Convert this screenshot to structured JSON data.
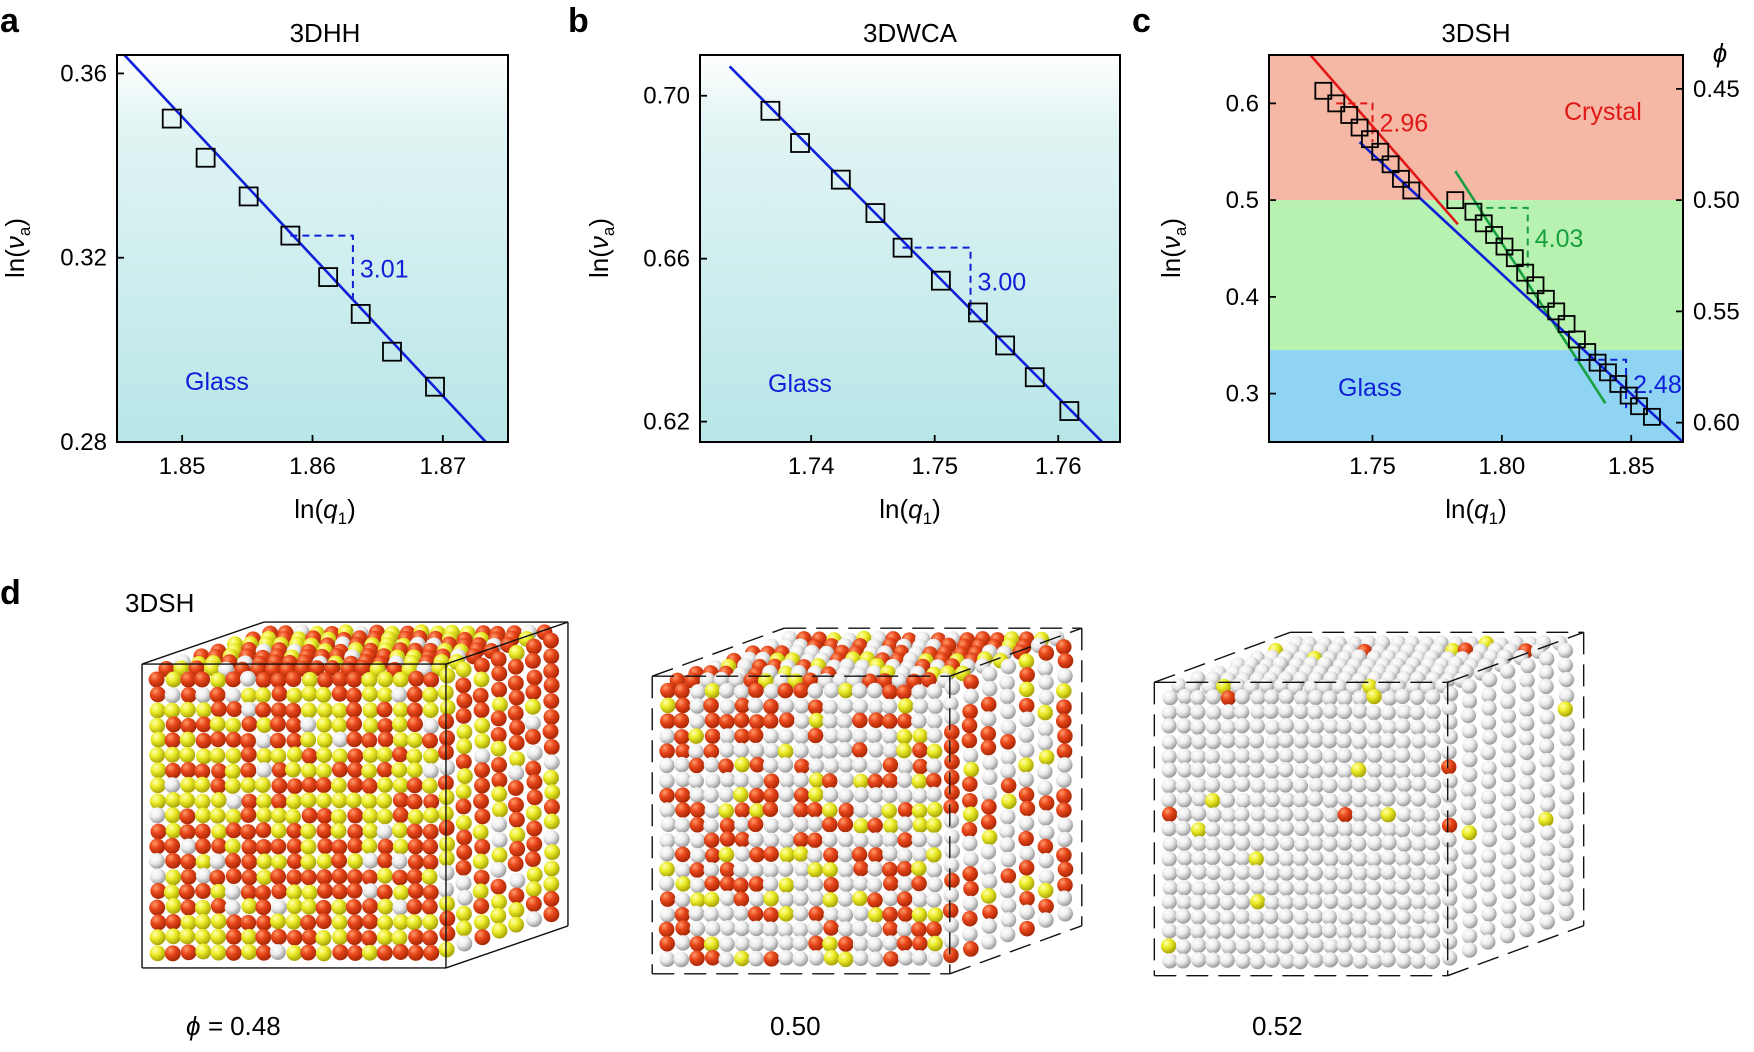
{
  "panel_labels": {
    "a": "a",
    "b": "b",
    "c": "c",
    "d": "d"
  },
  "colors": {
    "line_blue": "#1020d8",
    "glass_top": "#ffffff",
    "glass_bottom": "#b8e6e8",
    "crystal_band": "#f5b8a4",
    "mid_band": "#b8f2b0",
    "glass_band": "#8fd4f2",
    "red": "#e01818",
    "green": "#18a040",
    "orange_particle": "#e8461a",
    "yellow_particle": "#ecec28",
    "white_particle": "#f2f2f2"
  },
  "chart_data": [
    {
      "id": "a",
      "type": "scatter",
      "title": "3DHH",
      "xlabel": "ln(q1)",
      "ylabel": "ln(va)",
      "xlim": [
        1.845,
        1.875
      ],
      "ylim": [
        0.28,
        0.364
      ],
      "xticks": [
        1.85,
        1.86,
        1.87
      ],
      "xtick_labels": [
        "1.85",
        "1.86",
        "1.87"
      ],
      "yticks": [
        0.28,
        0.32,
        0.36
      ],
      "ytick_labels": [
        "0.28",
        "0.32",
        "0.36"
      ],
      "x": [
        1.8492,
        1.8518,
        1.8551,
        1.8583,
        1.8612,
        1.8637,
        1.8661,
        1.8694
      ],
      "y": [
        0.3502,
        0.3417,
        0.3333,
        0.3248,
        0.3158,
        0.3078,
        0.2996,
        0.292
      ],
      "fit_line": {
        "x": [
          1.8453,
          1.8733
        ],
        "y": [
          0.3648,
          0.28
        ],
        "slope_label": "3.01"
      },
      "slope_triangle": {
        "x": [
          1.8583,
          1.8631
        ],
        "y": [
          0.3248,
          0.3106
        ]
      },
      "annotation": "Glass"
    },
    {
      "id": "b",
      "type": "scatter",
      "title": "3DWCA",
      "xlabel": "ln(q1)",
      "ylabel": "ln(va)",
      "xlim": [
        1.731,
        1.765
      ],
      "ylim": [
        0.615,
        0.71
      ],
      "xticks": [
        1.74,
        1.75,
        1.76
      ],
      "xtick_labels": [
        "1.74",
        "1.75",
        "1.76"
      ],
      "yticks": [
        0.62,
        0.66,
        0.7
      ],
      "ytick_labels": [
        "0.62",
        "0.66",
        "0.70"
      ],
      "x": [
        1.7367,
        1.7391,
        1.7424,
        1.7452,
        1.7474,
        1.7505,
        1.7535,
        1.7557,
        1.7581,
        1.7609
      ],
      "y": [
        0.6963,
        0.6884,
        0.6794,
        0.6712,
        0.6627,
        0.6546,
        0.6468,
        0.6387,
        0.6309,
        0.6226
      ],
      "fit_line": {
        "x": [
          1.7334,
          1.765
        ],
        "y": [
          0.7072,
          0.6106
        ],
        "slope_label": "3.00"
      },
      "slope_triangle": {
        "x": [
          1.7474,
          1.7529
        ],
        "y": [
          0.6627,
          0.6462
        ]
      },
      "annotation": "Glass"
    },
    {
      "id": "c",
      "type": "scatter",
      "title": "3DSH",
      "xlabel": "ln(q1)",
      "ylabel": "ln(va)",
      "right_axis_label": "ϕ",
      "xlim": [
        1.71,
        1.87
      ],
      "ylim": [
        0.25,
        0.65
      ],
      "xticks": [
        1.75,
        1.8,
        1.85
      ],
      "xtick_labels": [
        "1.75",
        "1.80",
        "1.85"
      ],
      "yticks": [
        0.3,
        0.4,
        0.5,
        0.6
      ],
      "ytick_labels": [
        "0.3",
        "0.4",
        "0.5",
        "0.6"
      ],
      "right_ticks_at_y": [
        0.615,
        0.5,
        0.385,
        0.27
      ],
      "right_tick_labels": [
        "0.45",
        "0.50",
        "0.55",
        "0.60"
      ],
      "bands": [
        {
          "name": "Crystal",
          "y_from": 0.5,
          "y_to": 0.65
        },
        {
          "name": "",
          "y_from": 0.345,
          "y_to": 0.5
        },
        {
          "name": "Glass",
          "y_from": 0.25,
          "y_to": 0.345
        }
      ],
      "x": [
        1.731,
        1.736,
        1.741,
        1.745,
        1.749,
        1.753,
        1.757,
        1.761,
        1.765,
        1.782,
        1.789,
        1.793,
        1.797,
        1.801,
        1.805,
        1.809,
        1.813,
        1.817,
        1.821,
        1.825,
        1.829,
        1.833,
        1.837,
        1.841,
        1.845,
        1.849,
        1.853,
        1.858
      ],
      "y": [
        0.613,
        0.6,
        0.588,
        0.575,
        0.563,
        0.55,
        0.537,
        0.522,
        0.51,
        0.5,
        0.488,
        0.476,
        0.464,
        0.452,
        0.44,
        0.425,
        0.412,
        0.398,
        0.385,
        0.372,
        0.356,
        0.343,
        0.332,
        0.322,
        0.31,
        0.298,
        0.287,
        0.276
      ],
      "fit_lines": [
        {
          "color": "red",
          "x": [
            1.726,
            1.783
          ],
          "y": [
            0.65,
            0.475
          ],
          "slope_label": "2.96"
        },
        {
          "color": "green",
          "x": [
            1.782,
            1.84
          ],
          "y": [
            0.53,
            0.29
          ],
          "slope_label": "4.03"
        },
        {
          "color": "blue",
          "x": [
            1.745,
            1.87
          ],
          "y": [
            0.56,
            0.25
          ],
          "slope_label": "2.48"
        }
      ],
      "slope_triangles": [
        {
          "color": "red",
          "x": [
            1.736,
            1.75
          ],
          "y": [
            0.6,
            0.56
          ]
        },
        {
          "color": "green",
          "x": [
            1.794,
            1.81
          ],
          "y": [
            0.492,
            0.43
          ]
        },
        {
          "color": "blue",
          "x": [
            1.828,
            1.848
          ],
          "y": [
            0.335,
            0.285
          ]
        }
      ],
      "annotations": [
        "Crystal",
        "Glass"
      ]
    }
  ],
  "panel_d": {
    "system_label": "3DSH",
    "phi_prefix": "ϕ = ",
    "cubes": [
      {
        "phi_label": "0.48",
        "counts": {
          "orange": 55,
          "yellow": 35,
          "white": 10
        }
      },
      {
        "phi_label": "0.50",
        "counts": {
          "orange": 35,
          "yellow": 15,
          "white": 50
        }
      },
      {
        "phi_label": "0.52",
        "counts": {
          "orange": 1,
          "yellow": 2,
          "white": 97
        }
      }
    ],
    "legend_note": "particle colors: orange, yellow, white"
  }
}
